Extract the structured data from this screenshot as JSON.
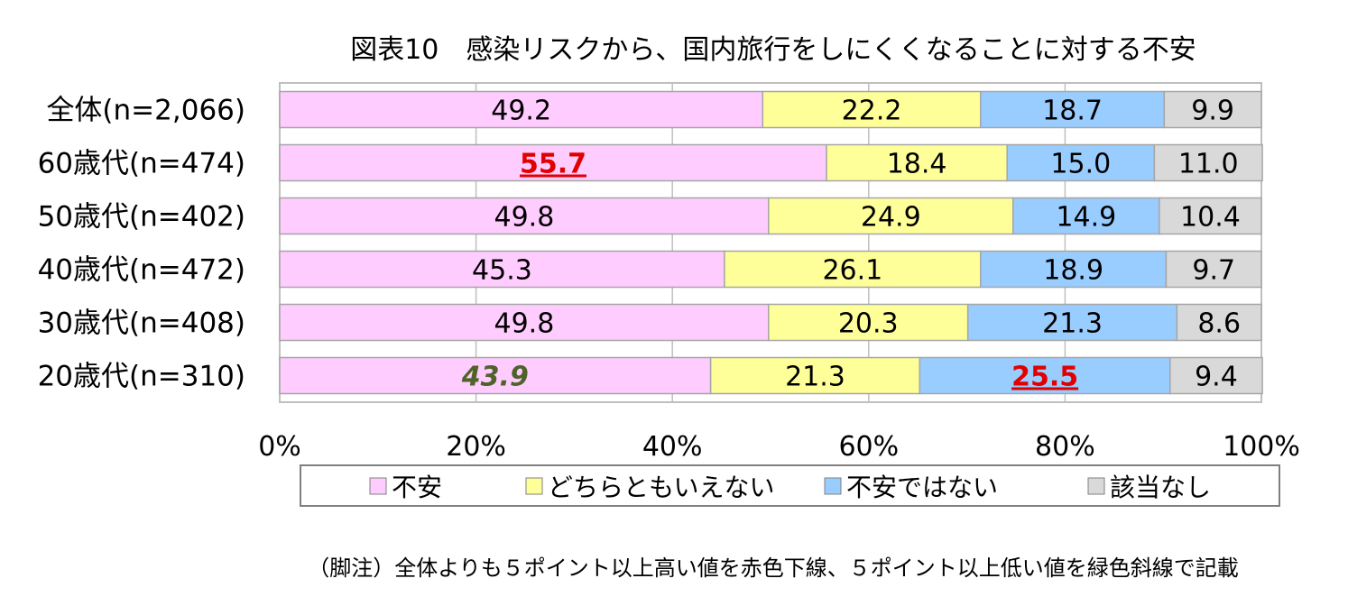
{
  "chart_data": {
    "type": "bar",
    "orientation": "horizontal",
    "stacked": "100%",
    "title": "図表10　感染リスクから、国内旅行をしにくくなることに対する不安",
    "categories": [
      "全体(n=2,066)",
      "60歳代(n=474)",
      "50歳代(n=402)",
      "40歳代(n=472)",
      "30歳代(n=408)",
      "20歳代(n=310)"
    ],
    "series": [
      {
        "name": "不安",
        "color": "#FFCCFF",
        "values": [
          49.2,
          55.7,
          49.8,
          45.3,
          49.8,
          43.9
        ]
      },
      {
        "name": "どちらともいえない",
        "color": "#FFFF99",
        "values": [
          22.2,
          18.4,
          24.9,
          26.1,
          20.3,
          21.3
        ]
      },
      {
        "name": "不安ではない",
        "color": "#99CCFF",
        "values": [
          18.7,
          15.0,
          14.9,
          18.9,
          21.3,
          25.5
        ]
      },
      {
        "name": "該当なし",
        "color": "#D9D9D9",
        "values": [
          9.9,
          11.0,
          10.4,
          9.7,
          8.6,
          9.4
        ]
      }
    ],
    "value_labels": [
      [
        "49.2",
        "22.2",
        "18.7",
        "9.9"
      ],
      [
        "55.7",
        "18.4",
        "15.0",
        "11.0"
      ],
      [
        "49.8",
        "24.9",
        "14.9",
        "10.4"
      ],
      [
        "45.3",
        "26.1",
        "18.9",
        "9.7"
      ],
      [
        "49.8",
        "20.3",
        "21.3",
        "8.6"
      ],
      [
        "43.9",
        "21.3",
        "25.5",
        "9.4"
      ]
    ],
    "highlights": [
      {
        "row": 1,
        "series": 0,
        "style": "red-underline",
        "color": "#E00000"
      },
      {
        "row": 5,
        "series": 2,
        "style": "red-underline",
        "color": "#E00000"
      },
      {
        "row": 5,
        "series": 0,
        "style": "green-italic",
        "color": "#4F6228"
      }
    ],
    "x_ticks": [
      "0%",
      "20%",
      "40%",
      "60%",
      "80%",
      "100%"
    ],
    "xlim": [
      0,
      100
    ],
    "grid": true,
    "legend_position": "bottom"
  },
  "footnote": "（脚注）全体よりも５ポイント以上高い値を赤色下線、５ポイント以上低い値を緑色斜線で記載"
}
